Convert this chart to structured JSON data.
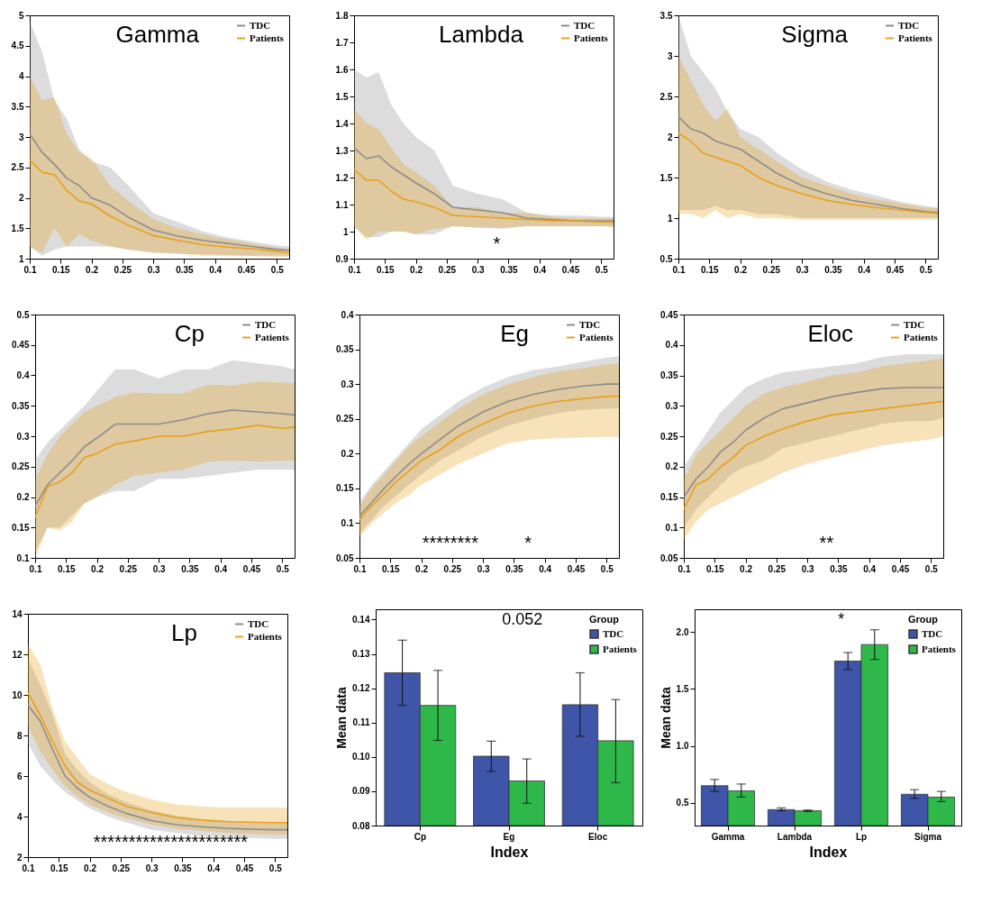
{
  "chart_data": [
    {
      "type": "line",
      "title": "Gamma",
      "x": [
        0.1,
        0.12,
        0.14,
        0.16,
        0.18,
        0.2,
        0.23,
        0.26,
        0.3,
        0.34,
        0.38,
        0.42,
        0.46,
        0.5,
        0.52
      ],
      "xlim": [
        0.1,
        0.52
      ],
      "xticks": [
        0.1,
        0.15,
        0.2,
        0.25,
        0.3,
        0.35,
        0.4,
        0.45,
        0.5
      ],
      "ylim": [
        1,
        5
      ],
      "yticks": [
        1,
        1.5,
        2,
        2.5,
        3,
        3.5,
        4,
        4.5,
        5
      ],
      "legend": "top right",
      "series": [
        {
          "name": "TDC",
          "color": "#8c8c8c",
          "values": [
            3.05,
            2.75,
            2.55,
            2.32,
            2.2,
            2.0,
            1.88,
            1.68,
            1.47,
            1.37,
            1.3,
            1.25,
            1.2,
            1.15,
            1.14
          ],
          "upper": [
            4.9,
            4.4,
            3.6,
            3.3,
            2.8,
            2.6,
            2.5,
            2.2,
            1.75,
            1.6,
            1.45,
            1.35,
            1.28,
            1.22,
            1.2
          ],
          "lower": [
            1.2,
            1.05,
            1.15,
            1.2,
            1.2,
            1.2,
            1.2,
            1.15,
            1.1,
            1.08,
            1.07,
            1.06,
            1.05,
            1.05,
            1.05
          ]
        },
        {
          "name": "Patients",
          "color": "#e8a01a",
          "values": [
            2.62,
            2.42,
            2.38,
            2.12,
            1.95,
            1.9,
            1.7,
            1.55,
            1.38,
            1.3,
            1.23,
            1.19,
            1.16,
            1.12,
            1.1
          ],
          "upper": [
            4.0,
            3.6,
            3.65,
            3.05,
            2.75,
            2.65,
            2.2,
            1.95,
            1.65,
            1.5,
            1.4,
            1.32,
            1.25,
            1.18,
            1.16
          ],
          "lower": [
            1.2,
            1.1,
            1.5,
            1.2,
            1.4,
            1.3,
            1.2,
            1.15,
            1.1,
            1.08,
            1.05,
            1.04,
            1.04,
            1.03,
            1.03
          ]
        }
      ]
    },
    {
      "type": "line",
      "title": "Lambda",
      "x": [
        0.1,
        0.12,
        0.14,
        0.16,
        0.18,
        0.2,
        0.23,
        0.26,
        0.3,
        0.34,
        0.38,
        0.42,
        0.46,
        0.5,
        0.52
      ],
      "xlim": [
        0.1,
        0.52
      ],
      "xticks": [
        0.1,
        0.15,
        0.2,
        0.25,
        0.3,
        0.35,
        0.4,
        0.45,
        0.5
      ],
      "ylim": [
        0.9,
        1.8
      ],
      "yticks": [
        0.9,
        1,
        1.1,
        1.2,
        1.3,
        1.4,
        1.5,
        1.6,
        1.7,
        1.8
      ],
      "legend": "top right",
      "annotations": [
        "*"
      ],
      "series": [
        {
          "name": "TDC",
          "color": "#8c8c8c",
          "values": [
            1.31,
            1.27,
            1.28,
            1.24,
            1.21,
            1.18,
            1.14,
            1.09,
            1.08,
            1.07,
            1.05,
            1.045,
            1.04,
            1.04,
            1.04
          ],
          "upper": [
            1.6,
            1.57,
            1.59,
            1.47,
            1.4,
            1.35,
            1.3,
            1.17,
            1.14,
            1.12,
            1.07,
            1.06,
            1.06,
            1.055,
            1.055
          ],
          "lower": [
            1.02,
            0.98,
            0.98,
            1.0,
            1.0,
            0.99,
            0.99,
            1.02,
            1.015,
            1.01,
            1.02,
            1.02,
            1.02,
            1.02,
            1.02
          ]
        },
        {
          "name": "Patients",
          "color": "#e8a01a",
          "values": [
            1.23,
            1.19,
            1.19,
            1.15,
            1.12,
            1.11,
            1.09,
            1.06,
            1.055,
            1.05,
            1.045,
            1.04,
            1.04,
            1.035,
            1.035
          ],
          "upper": [
            1.45,
            1.4,
            1.38,
            1.31,
            1.25,
            1.22,
            1.17,
            1.09,
            1.09,
            1.07,
            1.07,
            1.055,
            1.05,
            1.05,
            1.05
          ],
          "lower": [
            1.02,
            0.97,
            1.0,
            1.0,
            1.0,
            0.99,
            1.01,
            1.02,
            1.015,
            1.015,
            1.02,
            1.02,
            1.02,
            1.02,
            1.015
          ]
        }
      ]
    },
    {
      "type": "line",
      "title": "Sigma",
      "x": [
        0.1,
        0.12,
        0.14,
        0.16,
        0.18,
        0.2,
        0.23,
        0.26,
        0.3,
        0.34,
        0.38,
        0.42,
        0.46,
        0.5,
        0.52
      ],
      "xlim": [
        0.1,
        0.52
      ],
      "xticks": [
        0.1,
        0.15,
        0.2,
        0.25,
        0.3,
        0.35,
        0.4,
        0.45,
        0.5
      ],
      "ylim": [
        0.5,
        3.5
      ],
      "yticks": [
        0.5,
        1,
        1.5,
        2,
        2.5,
        3,
        3.5
      ],
      "legend": "top right",
      "series": [
        {
          "name": "TDC",
          "color": "#8c8c8c",
          "values": [
            2.25,
            2.1,
            2.05,
            1.95,
            1.9,
            1.85,
            1.7,
            1.55,
            1.4,
            1.3,
            1.22,
            1.17,
            1.12,
            1.08,
            1.07
          ],
          "upper": [
            3.5,
            3.0,
            2.8,
            2.6,
            2.3,
            2.1,
            2.0,
            1.8,
            1.6,
            1.45,
            1.35,
            1.28,
            1.2,
            1.15,
            1.13
          ],
          "lower": [
            1.1,
            1.1,
            1.1,
            1.15,
            1.1,
            1.1,
            1.05,
            1.05,
            1.0,
            1.0,
            1.0,
            1.0,
            1.0,
            1.0,
            1.0
          ]
        },
        {
          "name": "Patients",
          "color": "#e8a01a",
          "values": [
            2.05,
            1.95,
            1.8,
            1.75,
            1.7,
            1.65,
            1.5,
            1.4,
            1.3,
            1.22,
            1.17,
            1.13,
            1.1,
            1.07,
            1.06
          ],
          "upper": [
            3.0,
            2.7,
            2.4,
            2.2,
            2.35,
            2.0,
            1.85,
            1.7,
            1.5,
            1.4,
            1.3,
            1.23,
            1.18,
            1.13,
            1.12
          ],
          "lower": [
            1.05,
            1.05,
            1.0,
            1.1,
            1.0,
            1.05,
            1.0,
            1.0,
            0.98,
            0.98,
            0.98,
            0.98,
            0.98,
            0.98,
            0.98
          ]
        }
      ]
    },
    {
      "type": "line",
      "title": "Cp",
      "x": [
        0.1,
        0.12,
        0.14,
        0.16,
        0.18,
        0.2,
        0.23,
        0.26,
        0.3,
        0.34,
        0.38,
        0.42,
        0.46,
        0.5,
        0.52
      ],
      "xlim": [
        0.1,
        0.52
      ],
      "xticks": [
        0.1,
        0.15,
        0.2,
        0.25,
        0.3,
        0.35,
        0.4,
        0.45,
        0.5
      ],
      "ylim": [
        0.1,
        0.5
      ],
      "yticks": [
        0.1,
        0.15,
        0.2,
        0.25,
        0.3,
        0.35,
        0.4,
        0.45,
        0.5
      ],
      "legend": "top right",
      "series": [
        {
          "name": "TDC",
          "color": "#8c8c8c",
          "values": [
            0.185,
            0.22,
            0.24,
            0.26,
            0.283,
            0.297,
            0.32,
            0.32,
            0.32,
            0.327,
            0.337,
            0.343,
            0.34,
            0.337,
            0.335
          ],
          "upper": [
            0.26,
            0.29,
            0.31,
            0.33,
            0.35,
            0.375,
            0.41,
            0.41,
            0.395,
            0.41,
            0.41,
            0.425,
            0.42,
            0.415,
            0.41
          ],
          "lower": [
            0.11,
            0.15,
            0.15,
            0.17,
            0.19,
            0.2,
            0.21,
            0.21,
            0.23,
            0.23,
            0.235,
            0.24,
            0.245,
            0.245,
            0.245
          ]
        },
        {
          "name": "Patients",
          "color": "#e8a01a",
          "values": [
            0.167,
            0.217,
            0.225,
            0.24,
            0.265,
            0.272,
            0.287,
            0.292,
            0.3,
            0.3,
            0.308,
            0.312,
            0.318,
            0.313,
            0.315
          ],
          "upper": [
            0.23,
            0.27,
            0.3,
            0.32,
            0.34,
            0.35,
            0.365,
            0.372,
            0.37,
            0.37,
            0.385,
            0.383,
            0.39,
            0.388,
            0.387
          ],
          "lower": [
            0.1,
            0.15,
            0.145,
            0.16,
            0.19,
            0.2,
            0.22,
            0.235,
            0.24,
            0.245,
            0.258,
            0.26,
            0.258,
            0.26,
            0.26
          ]
        }
      ]
    },
    {
      "type": "line",
      "title": "Eg",
      "x": [
        0.1,
        0.12,
        0.14,
        0.16,
        0.18,
        0.2,
        0.23,
        0.26,
        0.3,
        0.34,
        0.38,
        0.42,
        0.46,
        0.5,
        0.52
      ],
      "xlim": [
        0.1,
        0.52
      ],
      "xticks": [
        0.1,
        0.15,
        0.2,
        0.25,
        0.3,
        0.35,
        0.4,
        0.45,
        0.5
      ],
      "ylim": [
        0.05,
        0.4
      ],
      "yticks": [
        0.05,
        0.1,
        0.15,
        0.2,
        0.25,
        0.3,
        0.35,
        0.4
      ],
      "legend": "top right",
      "annotations": [
        "********",
        "*"
      ],
      "series": [
        {
          "name": "TDC",
          "color": "#8c8c8c",
          "values": [
            0.11,
            0.13,
            0.15,
            0.168,
            0.185,
            0.2,
            0.22,
            0.24,
            0.26,
            0.275,
            0.285,
            0.292,
            0.297,
            0.3,
            0.3
          ],
          "upper": [
            0.13,
            0.155,
            0.175,
            0.195,
            0.215,
            0.235,
            0.255,
            0.275,
            0.295,
            0.31,
            0.32,
            0.325,
            0.332,
            0.338,
            0.34
          ],
          "lower": [
            0.085,
            0.105,
            0.125,
            0.14,
            0.155,
            0.17,
            0.19,
            0.205,
            0.225,
            0.24,
            0.25,
            0.258,
            0.263,
            0.265,
            0.265
          ]
        },
        {
          "name": "Patients",
          "color": "#e8a01a",
          "values": [
            0.105,
            0.125,
            0.142,
            0.16,
            0.175,
            0.19,
            0.205,
            0.225,
            0.243,
            0.258,
            0.268,
            0.275,
            0.279,
            0.282,
            0.283
          ],
          "upper": [
            0.125,
            0.15,
            0.17,
            0.19,
            0.21,
            0.225,
            0.245,
            0.265,
            0.285,
            0.3,
            0.31,
            0.318,
            0.323,
            0.328,
            0.33
          ],
          "lower": [
            0.08,
            0.1,
            0.115,
            0.13,
            0.14,
            0.155,
            0.17,
            0.185,
            0.2,
            0.215,
            0.22,
            0.222,
            0.223,
            0.224,
            0.224
          ]
        }
      ]
    },
    {
      "type": "line",
      "title": "Eloc",
      "x": [
        0.1,
        0.12,
        0.14,
        0.16,
        0.18,
        0.2,
        0.23,
        0.26,
        0.3,
        0.34,
        0.38,
        0.42,
        0.46,
        0.5,
        0.52
      ],
      "xlim": [
        0.1,
        0.52
      ],
      "xticks": [
        0.1,
        0.15,
        0.2,
        0.25,
        0.3,
        0.35,
        0.4,
        0.45,
        0.5
      ],
      "ylim": [
        0.05,
        0.45
      ],
      "yticks": [
        0.05,
        0.1,
        0.15,
        0.2,
        0.25,
        0.3,
        0.35,
        0.4,
        0.45
      ],
      "legend": "top right",
      "annotations": [
        "**"
      ],
      "series": [
        {
          "name": "TDC",
          "color": "#8c8c8c",
          "values": [
            0.15,
            0.18,
            0.2,
            0.225,
            0.24,
            0.26,
            0.28,
            0.295,
            0.305,
            0.315,
            0.322,
            0.328,
            0.33,
            0.33,
            0.33
          ],
          "upper": [
            0.2,
            0.23,
            0.26,
            0.29,
            0.31,
            0.33,
            0.345,
            0.355,
            0.36,
            0.365,
            0.37,
            0.38,
            0.385,
            0.385,
            0.385
          ],
          "lower": [
            0.1,
            0.13,
            0.15,
            0.17,
            0.19,
            0.2,
            0.21,
            0.23,
            0.24,
            0.25,
            0.26,
            0.27,
            0.275,
            0.275,
            0.28
          ]
        },
        {
          "name": "Patients",
          "color": "#e8a01a",
          "values": [
            0.13,
            0.17,
            0.18,
            0.2,
            0.215,
            0.235,
            0.25,
            0.262,
            0.275,
            0.285,
            0.29,
            0.295,
            0.3,
            0.305,
            0.307
          ],
          "upper": [
            0.18,
            0.22,
            0.24,
            0.26,
            0.28,
            0.3,
            0.32,
            0.33,
            0.34,
            0.35,
            0.355,
            0.365,
            0.37,
            0.375,
            0.378
          ],
          "lower": [
            0.08,
            0.11,
            0.13,
            0.14,
            0.15,
            0.16,
            0.175,
            0.19,
            0.205,
            0.215,
            0.225,
            0.235,
            0.24,
            0.245,
            0.25
          ]
        }
      ]
    },
    {
      "type": "line",
      "title": "Lp",
      "x": [
        0.1,
        0.12,
        0.14,
        0.16,
        0.18,
        0.2,
        0.23,
        0.26,
        0.3,
        0.34,
        0.38,
        0.42,
        0.46,
        0.5,
        0.52
      ],
      "xlim": [
        0.1,
        0.52
      ],
      "xticks": [
        0.1,
        0.15,
        0.2,
        0.25,
        0.3,
        0.35,
        0.4,
        0.45,
        0.5
      ],
      "ylim": [
        2,
        14
      ],
      "yticks": [
        2,
        4,
        6,
        8,
        10,
        12,
        14
      ],
      "legend": "top right",
      "annotations": [
        "**********************"
      ],
      "series": [
        {
          "name": "TDC",
          "color": "#8c8c8c",
          "values": [
            9.5,
            8.7,
            7.3,
            6.0,
            5.4,
            4.95,
            4.5,
            4.15,
            3.8,
            3.6,
            3.5,
            3.42,
            3.38,
            3.35,
            3.35
          ],
          "upper": [
            11.8,
            10.5,
            9.0,
            7.1,
            6.3,
            5.7,
            5.1,
            4.7,
            4.3,
            4.05,
            3.9,
            3.8,
            3.75,
            3.7,
            3.7
          ],
          "lower": [
            7.6,
            6.5,
            5.8,
            5.2,
            4.8,
            4.4,
            4.0,
            3.7,
            3.35,
            3.2,
            3.05,
            3.0,
            2.95,
            2.9,
            2.9
          ]
        },
        {
          "name": "Patients",
          "color": "#e8a01a",
          "values": [
            10.1,
            9.0,
            7.7,
            6.5,
            5.7,
            5.3,
            4.9,
            4.5,
            4.2,
            3.95,
            3.82,
            3.75,
            3.72,
            3.7,
            3.7
          ],
          "upper": [
            12.5,
            11.5,
            9.3,
            7.7,
            6.9,
            6.1,
            5.6,
            5.2,
            4.85,
            4.6,
            4.5,
            4.45,
            4.45,
            4.45,
            4.45
          ],
          "lower": [
            8.5,
            7.2,
            6.3,
            5.5,
            5.0,
            4.6,
            4.2,
            3.9,
            3.6,
            3.4,
            3.3,
            3.2,
            3.15,
            3.1,
            3.1
          ]
        }
      ]
    },
    {
      "type": "bar",
      "xlabel": "Index",
      "ylabel": "Mean data",
      "legend_title": "Group",
      "legend": "top right",
      "categories": [
        "Cp",
        "Eg",
        "Eloc"
      ],
      "ylim": [
        0.08,
        0.143
      ],
      "yticks": [
        0.08,
        0.09,
        {
          "value": 0.1,
          "label": "0.10"
        },
        0.11,
        0.12,
        0.13,
        0.14
      ],
      "annotations": [
        "0.052"
      ],
      "series": [
        {
          "name": "TDC",
          "color": "#3f55a8",
          "values": [
            0.1245,
            0.1002,
            0.1152
          ],
          "errors": [
            [
              0.115,
              0.134
            ],
            [
              0.0958,
              0.1046
            ],
            [
              0.106,
              0.1245
            ]
          ]
        },
        {
          "name": "Patients",
          "color": "#2eb84a",
          "values": [
            0.115,
            0.093,
            0.1047
          ],
          "errors": [
            [
              0.1048,
              0.1252
            ],
            [
              0.0865,
              0.0994
            ],
            [
              0.0925,
              0.1167
            ]
          ]
        }
      ]
    },
    {
      "type": "bar",
      "xlabel": "Index",
      "ylabel": "Mean data",
      "legend_title": "Group",
      "legend": "top right",
      "categories": [
        "Gamma",
        "Lambda",
        "Lp",
        "Sigma"
      ],
      "ylim": [
        0.3,
        2.2
      ],
      "yticks": [
        {
          "value": 0.5,
          "label": "0.5"
        },
        {
          "value": 1,
          "label": "1.0"
        },
        {
          "value": 1.5,
          "label": "1.5"
        },
        {
          "value": 2,
          "label": "2.0"
        }
      ],
      "annotations": [
        "*"
      ],
      "series": [
        {
          "name": "TDC",
          "color": "#3f55a8",
          "values": [
            0.65,
            0.44,
            1.745,
            0.575
          ],
          "errors": [
            [
              0.6,
              0.705
            ],
            [
              0.43,
              0.455
            ],
            [
              1.67,
              1.82
            ],
            [
              0.54,
              0.615
            ]
          ]
        },
        {
          "name": "Patients",
          "color": "#2eb84a",
          "values": [
            0.605,
            0.43,
            1.89,
            0.55
          ],
          "errors": [
            [
              0.55,
              0.665
            ],
            [
              0.423,
              0.437
            ],
            [
              1.76,
              2.02
            ],
            [
              0.51,
              0.6
            ]
          ]
        }
      ]
    }
  ]
}
